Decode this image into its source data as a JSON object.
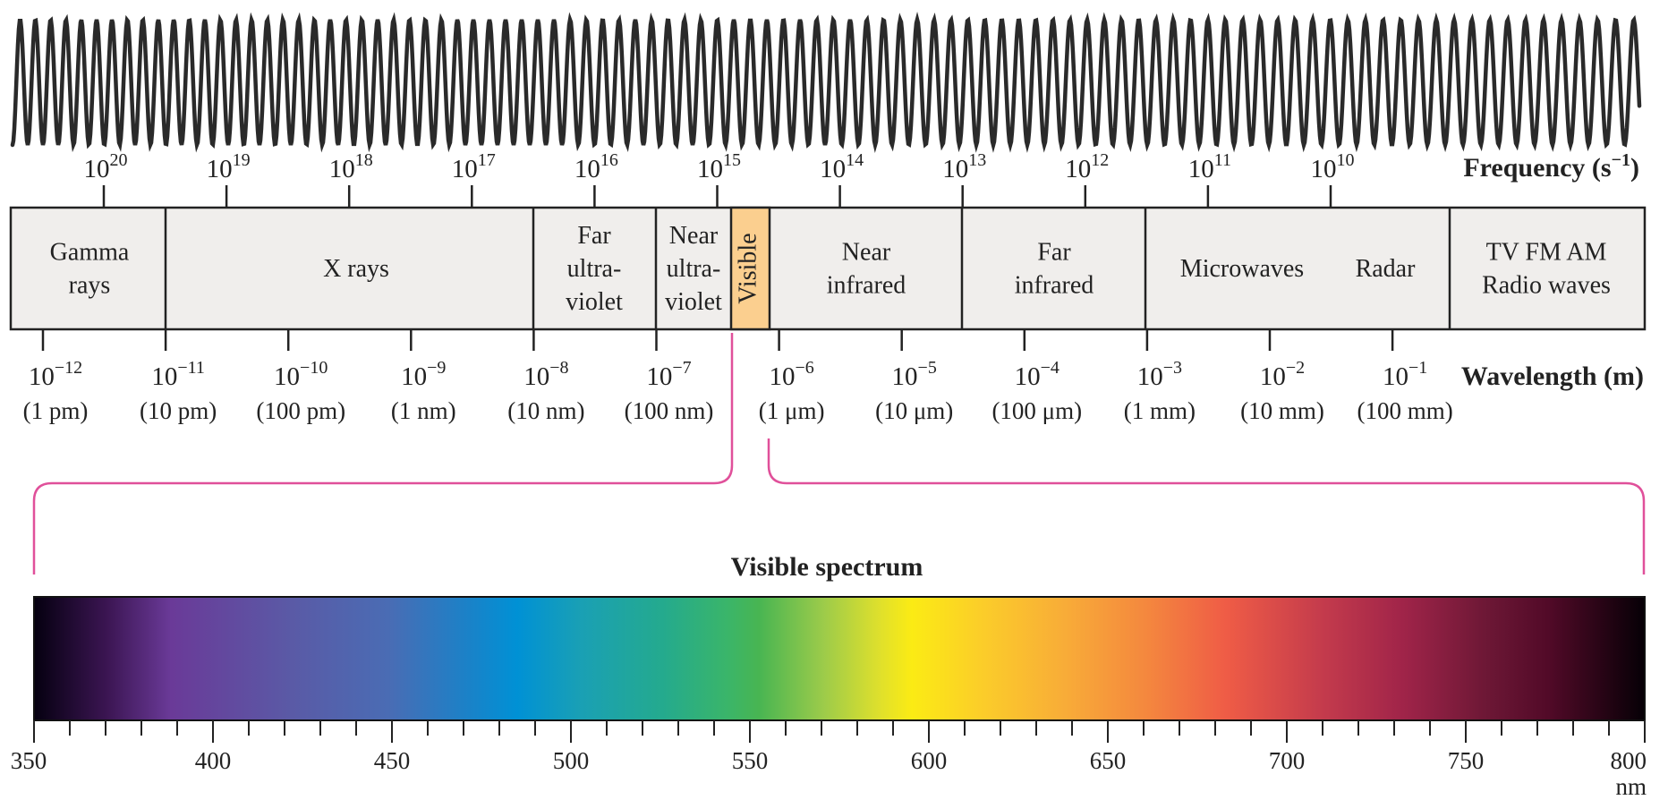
{
  "frequency_axis": {
    "title": "Frequency (s",
    "title_sup": "−1",
    "title_end": ")",
    "ticks": [
      {
        "base": "10",
        "exp": "20"
      },
      {
        "base": "10",
        "exp": "19"
      },
      {
        "base": "10",
        "exp": "18"
      },
      {
        "base": "10",
        "exp": "17"
      },
      {
        "base": "10",
        "exp": "16"
      },
      {
        "base": "10",
        "exp": "15"
      },
      {
        "base": "10",
        "exp": "14"
      },
      {
        "base": "10",
        "exp": "13"
      },
      {
        "base": "10",
        "exp": "12"
      },
      {
        "base": "10",
        "exp": "11"
      },
      {
        "base": "10",
        "exp": "10"
      }
    ]
  },
  "wavelength_axis": {
    "title": "Wavelength (m)",
    "ticks": [
      {
        "base": "10",
        "exp": "−12",
        "sub": "(1 pm)"
      },
      {
        "base": "10",
        "exp": "−11",
        "sub": "(10 pm)"
      },
      {
        "base": "10",
        "exp": "−10",
        "sub": "(100 pm)"
      },
      {
        "base": "10",
        "exp": "−9",
        "sub": "(1 nm)"
      },
      {
        "base": "10",
        "exp": "−8",
        "sub": "(10 nm)"
      },
      {
        "base": "10",
        "exp": "−7",
        "sub": "(100 nm)"
      },
      {
        "base": "10",
        "exp": "−6",
        "sub": "(1 μm)"
      },
      {
        "base": "10",
        "exp": "−5",
        "sub": "(10 μm)"
      },
      {
        "base": "10",
        "exp": "−4",
        "sub": "(100 μm)"
      },
      {
        "base": "10",
        "exp": "−3",
        "sub": "(1 mm)"
      },
      {
        "base": "10",
        "exp": "−2",
        "sub": "(10 mm)"
      },
      {
        "base": "10",
        "exp": "−1",
        "sub": "(100 mm)"
      }
    ]
  },
  "regions": [
    {
      "id": "gamma",
      "lines": [
        "Gamma",
        "rays"
      ]
    },
    {
      "id": "xrays",
      "lines": [
        "X rays"
      ]
    },
    {
      "id": "far-uv",
      "lines": [
        "Far",
        "ultra-",
        "violet"
      ]
    },
    {
      "id": "near-uv",
      "lines": [
        "Near",
        "ultra-",
        "violet"
      ]
    },
    {
      "id": "visible",
      "lines": [
        "Visible"
      ]
    },
    {
      "id": "near-ir",
      "lines": [
        "Near",
        "infrared"
      ]
    },
    {
      "id": "far-ir",
      "lines": [
        "Far",
        "infrared"
      ]
    },
    {
      "id": "microwaves",
      "lines": [
        "Microwaves"
      ]
    },
    {
      "id": "radar",
      "lines": [
        "Radar"
      ]
    },
    {
      "id": "radio",
      "lines": [
        "TV FM AM",
        "Radio waves"
      ]
    }
  ],
  "visible_spectrum": {
    "title": "Visible spectrum",
    "nm_min": 350,
    "nm_max": 800,
    "labels": [
      "350",
      "400",
      "450",
      "500",
      "550",
      "600",
      "650",
      "700",
      "750",
      "800"
    ],
    "unit": "nm"
  },
  "colors": {
    "band_fill": "#f0eeec",
    "visible_fill": "#fbcf8f",
    "connector": "#e0509a",
    "wave": "#2a2a2a"
  }
}
